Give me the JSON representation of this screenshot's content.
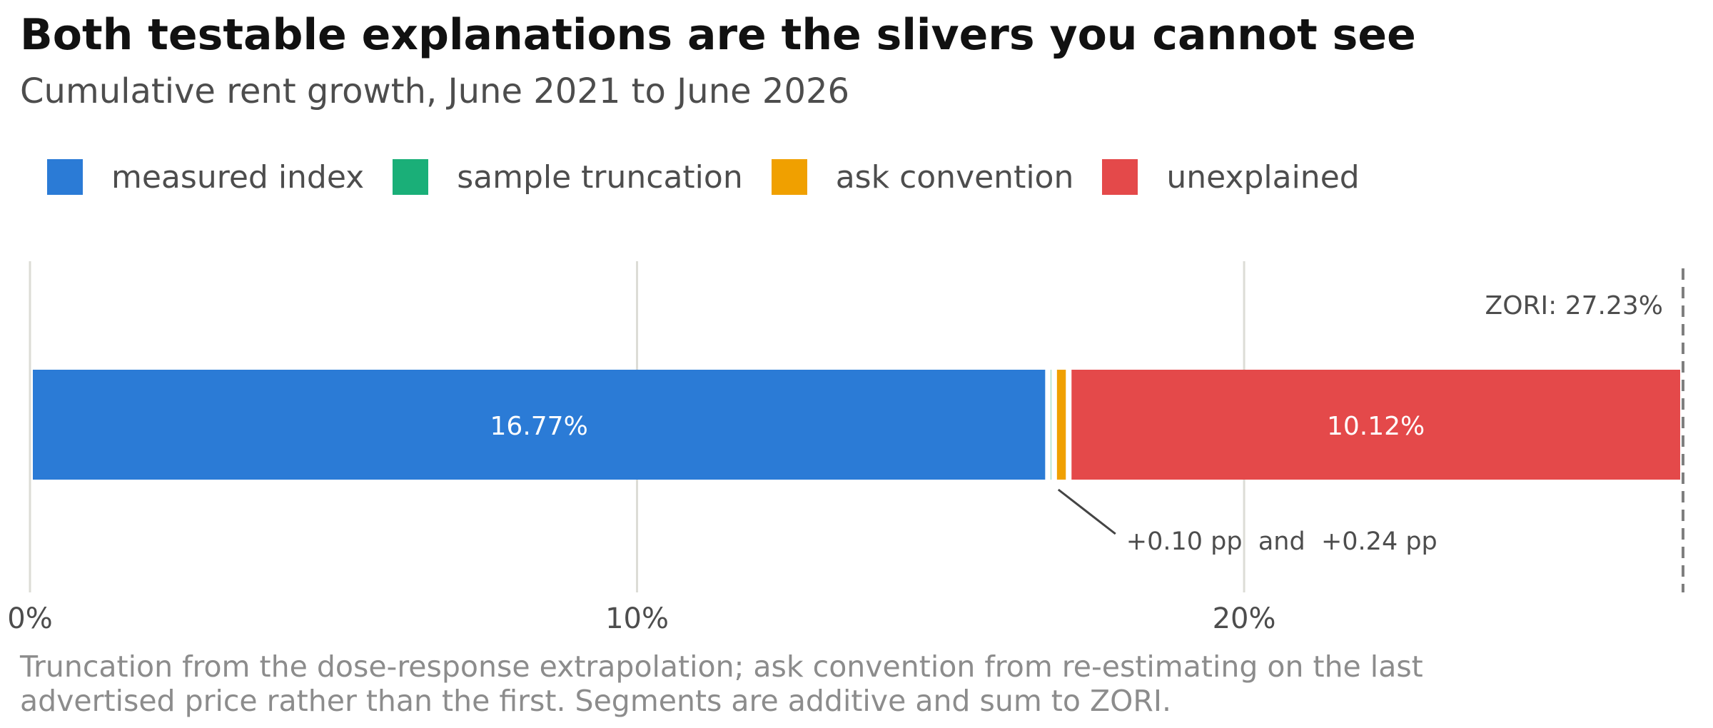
{
  "chart_data": {
    "type": "bar",
    "orientation": "horizontal",
    "stacked": true,
    "title": "Both testable explanations are the slivers you cannot see",
    "subtitle": "Cumulative rent growth, June 2021 to June 2026",
    "series": [
      {
        "name": "measured index",
        "value": 16.77,
        "label": "16.77%",
        "color": "#2b7bd6"
      },
      {
        "name": "sample truncation",
        "value": 0.1,
        "label": "",
        "color": "#1aaf78"
      },
      {
        "name": "ask convention",
        "value": 0.24,
        "label": "",
        "color": "#f0a000"
      },
      {
        "name": "unexplained",
        "value": 10.12,
        "label": "10.12%",
        "color": "#e4494a"
      }
    ],
    "total": 27.23,
    "reference_line": {
      "value": 27.23,
      "label": "ZORI: 27.23%"
    },
    "annotation": {
      "text": "+0.10 pp  and  +0.24 pp"
    },
    "x_ticks": [
      {
        "value": 0,
        "label": "0%"
      },
      {
        "value": 10,
        "label": "10%"
      },
      {
        "value": 20,
        "label": "20%"
      }
    ],
    "xlim": [
      0,
      27.23
    ],
    "grid": "vertical",
    "legend_position": "top-left",
    "footnote": [
      "Truncation from the dose-response extrapolation; ask convention from re-estimating on the last",
      "advertised price rather than the first. Segments are additive and sum to ZORI."
    ]
  }
}
